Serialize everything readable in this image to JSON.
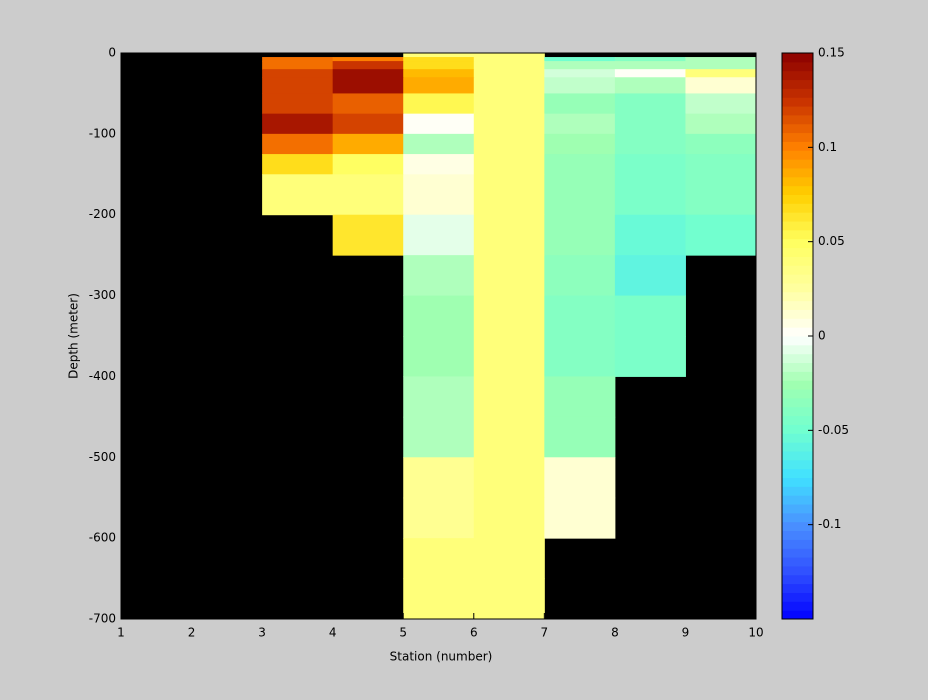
{
  "chart_data": {
    "type": "heatmap",
    "xlabel": "Station (number)",
    "ylabel": "Depth (meter)",
    "x": [
      1,
      2,
      3,
      4,
      5,
      6,
      7,
      8,
      9,
      10
    ],
    "y": [
      0,
      -5,
      -10,
      -20,
      -30,
      -50,
      -75,
      -100,
      -125,
      -150,
      -200,
      -250,
      -300,
      -350,
      -400,
      -450,
      -500,
      -550,
      -600,
      -650,
      -700
    ],
    "values": [
      [
        null,
        null,
        null,
        null,
        0.04,
        0.04,
        null,
        null,
        null
      ],
      [
        null,
        null,
        0.105,
        0.1,
        0.07,
        0.04,
        -0.05,
        -0.04,
        -0.02
      ],
      [
        null,
        null,
        0.105,
        0.125,
        0.07,
        0.04,
        -0.02,
        -0.02,
        -0.02
      ],
      [
        null,
        null,
        0.12,
        0.145,
        0.08,
        0.04,
        -0.01,
        0.0,
        0.04
      ],
      [
        null,
        null,
        0.12,
        0.145,
        0.085,
        0.04,
        -0.015,
        -0.02,
        0.01
      ],
      [
        null,
        null,
        0.12,
        0.11,
        0.055,
        0.04,
        -0.03,
        -0.04,
        -0.015
      ],
      [
        null,
        null,
        0.14,
        0.12,
        0.0,
        0.04,
        -0.02,
        -0.04,
        -0.02
      ],
      [
        null,
        null,
        0.105,
        0.085,
        -0.02,
        0.04,
        -0.025,
        -0.04,
        -0.035
      ],
      [
        null,
        null,
        0.07,
        0.05,
        0.005,
        0.04,
        -0.03,
        -0.045,
        -0.04
      ],
      [
        null,
        null,
        0.04,
        0.04,
        0.01,
        0.04,
        -0.03,
        -0.045,
        -0.04
      ],
      [
        null,
        null,
        null,
        0.065,
        -0.005,
        0.04,
        -0.03,
        -0.055,
        -0.05
      ],
      [
        null,
        null,
        null,
        null,
        -0.02,
        0.04,
        -0.035,
        -0.06,
        null
      ],
      [
        null,
        null,
        null,
        null,
        -0.025,
        0.04,
        -0.04,
        -0.045,
        null
      ],
      [
        null,
        null,
        null,
        null,
        -0.025,
        0.04,
        -0.04,
        -0.045,
        null
      ],
      [
        null,
        null,
        null,
        null,
        -0.02,
        0.04,
        -0.03,
        null,
        null
      ],
      [
        null,
        null,
        null,
        null,
        -0.02,
        0.04,
        -0.03,
        null,
        null
      ],
      [
        null,
        null,
        null,
        null,
        0.03,
        0.04,
        0.01,
        null,
        null
      ],
      [
        null,
        null,
        null,
        null,
        0.03,
        0.04,
        0.01,
        null,
        null
      ],
      [
        null,
        null,
        null,
        null,
        0.04,
        0.04,
        null,
        null,
        null
      ],
      [
        null,
        null,
        null,
        null,
        0.04,
        0.04,
        null,
        null,
        null
      ]
    ],
    "xlim": [
      1,
      10
    ],
    "ylim": [
      -700,
      0
    ],
    "xticks": [
      1,
      2,
      3,
      4,
      5,
      6,
      7,
      8,
      9,
      10
    ],
    "yticks": [
      0,
      -100,
      -200,
      -300,
      -400,
      -500,
      -600,
      -700
    ],
    "clim": [
      -0.15,
      0.15
    ],
    "cticks": [
      -0.1,
      -0.05,
      0,
      0.05,
      0.1,
      0.15
    ],
    "colormap": [
      "#0000ff",
      "#3050ff",
      "#4a90ff",
      "#40e0ff",
      "#70ffd0",
      "#a0ffb0",
      "#ffffff",
      "#ffffa0",
      "#ffff60",
      "#ffd000",
      "#ff8000",
      "#c83200",
      "#8b0000"
    ],
    "missing_color": "#000000"
  }
}
